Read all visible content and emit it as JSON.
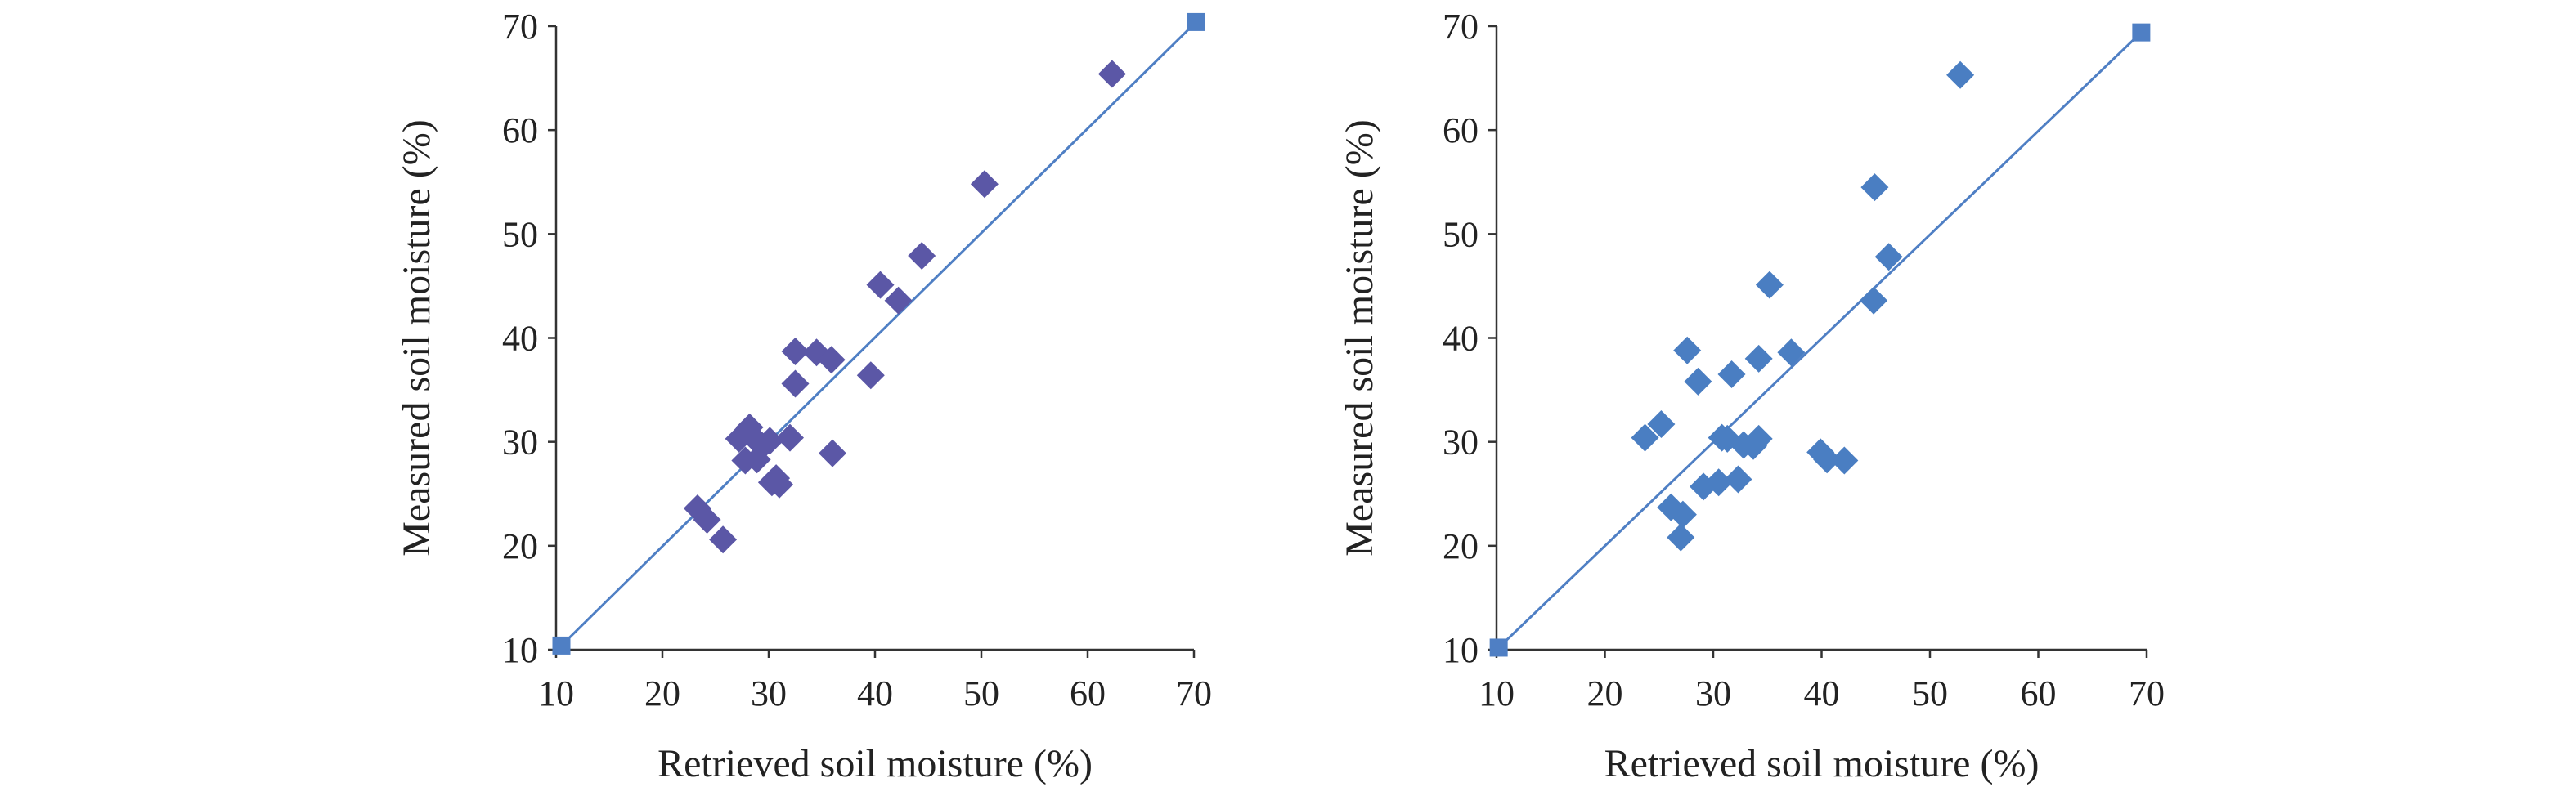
{
  "chart_data": [
    {
      "type": "scatter",
      "xlabel": "Retrieved soil moisture (%)",
      "ylabel": "Measured soil moisture (%)",
      "xlim": [
        10,
        70
      ],
      "ylim": [
        10,
        70
      ],
      "xticks": [
        10,
        20,
        30,
        40,
        50,
        60,
        70
      ],
      "yticks": [
        10,
        20,
        30,
        40,
        50,
        60,
        70
      ],
      "grid": false,
      "marker_color": "#5b57a6",
      "line_color": "#4f7fc4",
      "points": [
        {
          "x": 23.3,
          "y": 23.6
        },
        {
          "x": 24.2,
          "y": 22.5
        },
        {
          "x": 25.7,
          "y": 20.6
        },
        {
          "x": 27.2,
          "y": 30.3
        },
        {
          "x": 27.8,
          "y": 28.2
        },
        {
          "x": 28.2,
          "y": 31.4
        },
        {
          "x": 28.6,
          "y": 30.4
        },
        {
          "x": 28.9,
          "y": 28.3
        },
        {
          "x": 29.4,
          "y": 29.6
        },
        {
          "x": 30.1,
          "y": 30.1
        },
        {
          "x": 30.3,
          "y": 26.1
        },
        {
          "x": 30.7,
          "y": 26.5
        },
        {
          "x": 31.0,
          "y": 25.9
        },
        {
          "x": 32.0,
          "y": 30.4
        },
        {
          "x": 32.5,
          "y": 35.6
        },
        {
          "x": 32.5,
          "y": 38.7
        },
        {
          "x": 34.5,
          "y": 38.6
        },
        {
          "x": 35.9,
          "y": 37.9
        },
        {
          "x": 36.0,
          "y": 28.9
        },
        {
          "x": 39.6,
          "y": 36.4
        },
        {
          "x": 40.5,
          "y": 45.1
        },
        {
          "x": 42.2,
          "y": 43.6
        },
        {
          "x": 44.4,
          "y": 47.9
        },
        {
          "x": 50.3,
          "y": 54.8
        },
        {
          "x": 62.3,
          "y": 65.4
        }
      ],
      "line_points": [
        {
          "x": 10.5,
          "y": 10.4
        },
        {
          "x": 70.2,
          "y": 70.4
        }
      ]
    },
    {
      "type": "scatter",
      "xlabel": "Retrieved soil moisture (%)",
      "ylabel": "Measured soil moisture (%)",
      "xlim": [
        10,
        70
      ],
      "ylim": [
        10,
        70
      ],
      "xticks": [
        10,
        20,
        30,
        40,
        50,
        60,
        70
      ],
      "yticks": [
        10,
        20,
        30,
        40,
        50,
        60,
        70
      ],
      "grid": false,
      "marker_color": "#4a7ec2",
      "line_color": "#4f7fc4",
      "points": [
        {
          "x": 23.7,
          "y": 30.4
        },
        {
          "x": 25.2,
          "y": 31.7
        },
        {
          "x": 26.1,
          "y": 23.7
        },
        {
          "x": 27.0,
          "y": 20.8
        },
        {
          "x": 27.2,
          "y": 23.0
        },
        {
          "x": 27.6,
          "y": 38.8
        },
        {
          "x": 28.6,
          "y": 35.8
        },
        {
          "x": 29.1,
          "y": 25.7
        },
        {
          "x": 30.5,
          "y": 26.1
        },
        {
          "x": 30.8,
          "y": 30.4
        },
        {
          "x": 31.3,
          "y": 30.3
        },
        {
          "x": 31.7,
          "y": 36.5
        },
        {
          "x": 32.3,
          "y": 26.4
        },
        {
          "x": 32.8,
          "y": 29.7
        },
        {
          "x": 33.7,
          "y": 29.6
        },
        {
          "x": 34.2,
          "y": 30.3
        },
        {
          "x": 34.2,
          "y": 38.0
        },
        {
          "x": 35.2,
          "y": 45.1
        },
        {
          "x": 37.2,
          "y": 38.6
        },
        {
          "x": 39.9,
          "y": 29.0
        },
        {
          "x": 40.5,
          "y": 28.3
        },
        {
          "x": 42.1,
          "y": 28.2
        },
        {
          "x": 44.8,
          "y": 43.6
        },
        {
          "x": 44.9,
          "y": 54.5
        },
        {
          "x": 46.2,
          "y": 47.8
        },
        {
          "x": 52.8,
          "y": 65.3
        }
      ],
      "line_points": [
        {
          "x": 10.2,
          "y": 10.2
        },
        {
          "x": 69.5,
          "y": 69.4
        }
      ]
    }
  ]
}
